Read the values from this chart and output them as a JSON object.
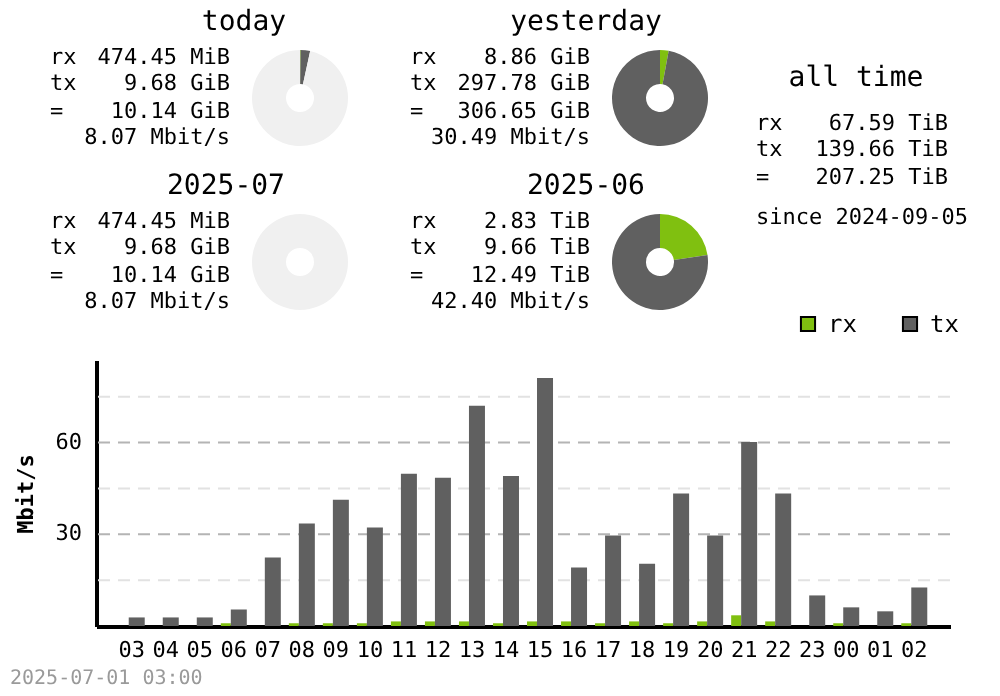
{
  "chart_data": [
    {
      "type": "donut",
      "title": "today",
      "categories": [
        null,
        null,
        null
      ],
      "values": [
        0.2,
        3.2,
        96.6
      ],
      "colors": [
        "#80c010",
        "#606060",
        "#f0f0f0"
      ],
      "annotations": [
        "rx",
        "474.45 MiB",
        "tx",
        "9.68 GiB",
        "=",
        "10.14 GiB",
        "8.07 Mbit/s"
      ]
    },
    {
      "type": "donut",
      "title": "yesterday",
      "categories": [
        null,
        null
      ],
      "values": [
        2.9,
        97.1
      ],
      "colors": [
        "#80c010",
        "#606060"
      ],
      "annotations": [
        "rx",
        "8.86 GiB",
        "tx",
        "297.78 GiB",
        "=",
        "306.65 GiB",
        "30.49 Mbit/s"
      ]
    },
    {
      "type": "other",
      "title": "all time",
      "annotations": [
        "rx",
        "67.59 TiB",
        "tx",
        "139.66 TiB",
        "=",
        "207.25 TiB",
        "since 2024-09-05"
      ]
    },
    {
      "type": "donut",
      "title": "2025-07",
      "categories": [
        null,
        null,
        null
      ],
      "values": [
        null,
        null,
        100
      ],
      "colors": [
        "#80c010",
        "#606060",
        "#f0f0f0"
      ],
      "annotations": [
        "rx",
        "474.45 MiB",
        "tx",
        "9.68 GiB",
        "=",
        "10.14 GiB",
        "8.07 Mbit/s"
      ]
    },
    {
      "type": "donut",
      "title": "2025-06",
      "categories": [
        null,
        null
      ],
      "values": [
        22.7,
        77.3
      ],
      "colors": [
        "#80c010",
        "#606060"
      ],
      "annotations": [
        "rx",
        "2.83 TiB",
        "tx",
        "9.66 TiB",
        "=",
        "12.49 TiB",
        "42.40 Mbit/s"
      ]
    },
    {
      "type": "bar",
      "ylabel": "Mbit/s",
      "categories": [
        "03",
        "04",
        "05",
        "06",
        "07",
        "08",
        "09",
        "10",
        "11",
        "12",
        "13",
        "14",
        "15",
        "16",
        "17",
        "18",
        "19",
        "20",
        "21",
        "22",
        "23",
        "00",
        "01",
        "02"
      ],
      "series": [
        {
          "name": "rx",
          "color": "#80c010",
          "values": [
            0,
            0,
            0,
            0.9,
            0,
            0.9,
            0.9,
            0.9,
            1.5,
            1.5,
            1.5,
            0.9,
            1.5,
            1.5,
            0.9,
            1.5,
            0.9,
            1.5,
            3.5,
            1.5,
            0,
            0.9,
            0,
            0.9
          ]
        },
        {
          "name": "tx",
          "color": "#606060",
          "values": [
            2.8,
            2.8,
            2.8,
            5.4,
            22.4,
            33.5,
            41.3,
            32.2,
            49.8,
            48.5,
            72.0,
            49.1,
            81.1,
            19.1,
            29.6,
            20.4,
            43.3,
            29.6,
            60.2,
            43.3,
            10.0,
            6.1,
            4.8,
            12.6
          ]
        }
      ],
      "ylim": [
        0,
        87
      ],
      "yticks": [
        {
          "value": 15,
          "label": null
        },
        30,
        {
          "value": 45,
          "label": null
        },
        60,
        {
          "value": 75,
          "label": null
        }
      ],
      "grid": "y",
      "legend": "top right",
      "annotations": [
        "2025-07-01 03:00"
      ]
    }
  ]
}
